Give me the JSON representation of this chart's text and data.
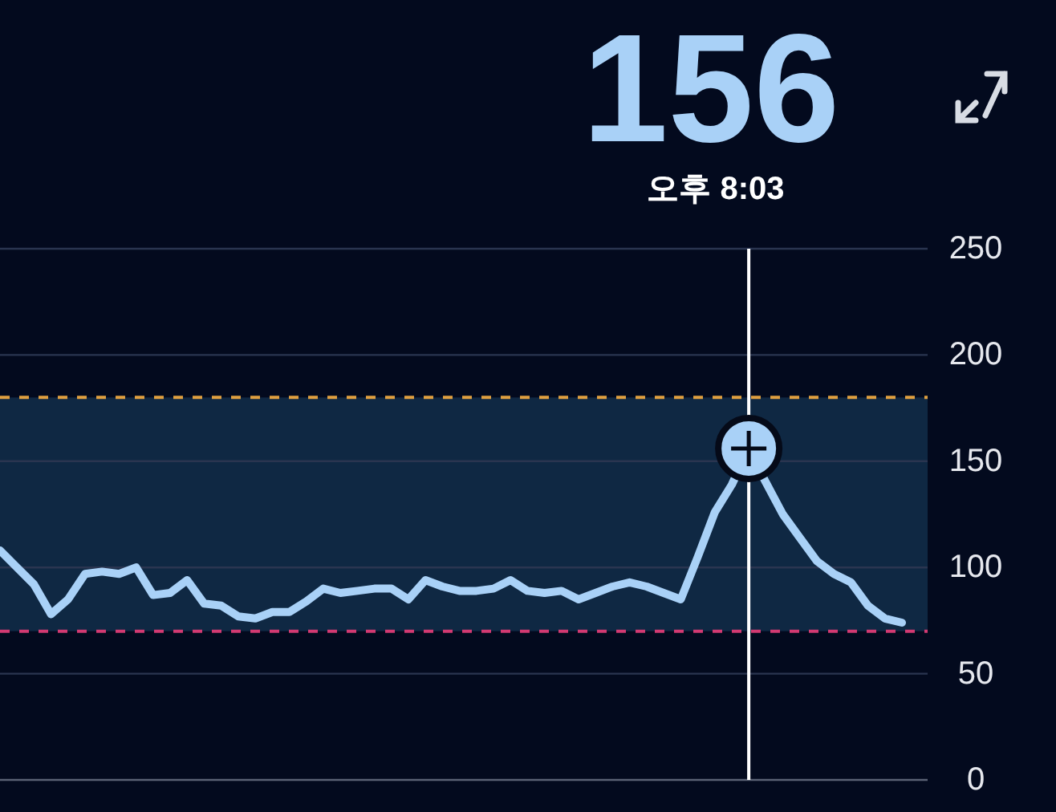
{
  "chart_data": {
    "type": "line",
    "subtitle": "오후 8:03",
    "categories": [
      null,
      null,
      null,
      null,
      null,
      null,
      null,
      null,
      null,
      null,
      null,
      null,
      null,
      null,
      null,
      null,
      null,
      null,
      null,
      null,
      null,
      null,
      null,
      null,
      null,
      null,
      null,
      null,
      null,
      null,
      null,
      null,
      null,
      null,
      null,
      null,
      null,
      null,
      null,
      null,
      null,
      null,
      null,
      null,
      null,
      null,
      null,
      null,
      null,
      null,
      null,
      null,
      null,
      null
    ],
    "series": [
      {
        "color": "#a9d1f7",
        "values": [
          108,
          100,
          92,
          78,
          85,
          97,
          98,
          97,
          100,
          87,
          88,
          94,
          83,
          82,
          77,
          76,
          79,
          79,
          84,
          90,
          88,
          89,
          90,
          90,
          85,
          94,
          91,
          89,
          89,
          90,
          94,
          89,
          88,
          89,
          85,
          88,
          91,
          93,
          91,
          88,
          85,
          105,
          126,
          139,
          156,
          140,
          125,
          114,
          103,
          97,
          93,
          82,
          76,
          74
        ]
      }
    ],
    "ylim": [
      0,
      250
    ],
    "yticks": [
      0,
      50,
      100,
      150,
      200,
      250
    ],
    "grid": "y",
    "line_style": "solid",
    "ref_lines": [
      {
        "axis": "y",
        "value": 180,
        "color": "#e0a040",
        "line_style": "dashed"
      },
      {
        "axis": "y",
        "value": 70,
        "color": "#d23a72",
        "line_style": "dashed"
      }
    ],
    "bands": [
      {
        "axis": "y",
        "from": 70,
        "to": 180,
        "color": "#0f2843"
      }
    ],
    "annotations": [
      {
        "text": "156",
        "y": 156
      }
    ]
  }
}
